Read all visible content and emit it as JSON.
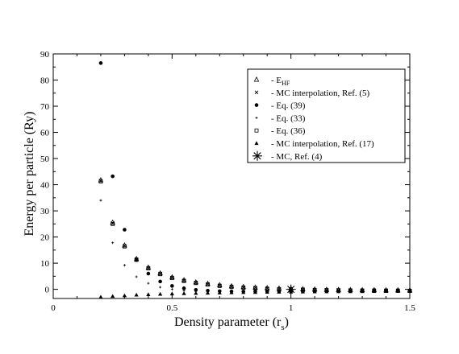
{
  "chart_data": {
    "type": "scatter",
    "xlabel": "Density parameter (r",
    "xlabel_sub": "s",
    "xlabel_close": ")",
    "ylabel": "Energy per particle (Ry)",
    "xlim": [
      0,
      1.5
    ],
    "ylim": [
      -3.5,
      90
    ],
    "xticks": [
      0,
      0.5,
      1,
      1.5
    ],
    "xtick_labels": [
      "0",
      "0.5",
      "1",
      "1.5"
    ],
    "yticks": [
      0,
      10,
      20,
      30,
      40,
      50,
      60,
      70,
      80,
      90
    ],
    "ytick_labels": [
      "0",
      "10",
      "20",
      "30",
      "40",
      "50",
      "60",
      "70",
      "80",
      "90"
    ],
    "grid": false,
    "legend_position": "top-right",
    "legend": [
      {
        "marker": "triangle-open",
        "prefix": "- ",
        "label": "E",
        "sub": "HF"
      },
      {
        "marker": "x",
        "prefix": "- ",
        "label": "MC interpolation, Ref.  (5)"
      },
      {
        "marker": "dot",
        "prefix": "- ",
        "label": "Eq.  (39)"
      },
      {
        "marker": "plus",
        "prefix": "- ",
        "label": "Eq.  (33)"
      },
      {
        "marker": "square-open",
        "prefix": "- ",
        "label": "Eq.  (36)"
      },
      {
        "marker": "triangle-filled",
        "prefix": "- ",
        "label": "MC interpolation, Ref.  (17)"
      },
      {
        "marker": "asterisk",
        "prefix": "- ",
        "label": "MC, Ref.  (4)"
      }
    ],
    "series": [
      {
        "marker": "triangle-open",
        "x": [
          0.2,
          0.25,
          0.3,
          0.35,
          0.4,
          0.45,
          0.5,
          0.55,
          0.6,
          0.65,
          0.7,
          0.75,
          0.8,
          0.85,
          0.9,
          0.95,
          1.0,
          1.05,
          1.1,
          1.15,
          1.2,
          1.25,
          1.3,
          1.35,
          1.4,
          1.45,
          1.5
        ],
        "y": [
          41.7,
          25.5,
          16.8,
          11.6,
          8.3,
          6.1,
          4.6,
          3.5,
          2.7,
          2.1,
          1.6,
          1.2,
          0.9,
          0.7,
          0.5,
          0.3,
          0.2,
          0.05,
          -0.05,
          -0.15,
          -0.2,
          -0.25,
          -0.3,
          -0.3,
          -0.35,
          -0.35,
          -0.4
        ]
      },
      {
        "marker": "x",
        "x": [
          0.2,
          0.25,
          0.3,
          0.35,
          0.4,
          0.45,
          0.5,
          0.55,
          0.6,
          0.65,
          0.7,
          0.75,
          0.8,
          0.85,
          0.9,
          0.95,
          1.0,
          1.05,
          1.1,
          1.15,
          1.2,
          1.25,
          1.3,
          1.35,
          1.4,
          1.45,
          1.5
        ],
        "y": [
          41.5,
          25.3,
          16.6,
          11.5,
          8.2,
          6.0,
          4.5,
          3.4,
          2.6,
          2.0,
          1.5,
          1.1,
          0.8,
          0.6,
          0.4,
          0.2,
          0.1,
          0.0,
          -0.1,
          -0.2,
          -0.25,
          -0.3,
          -0.35,
          -0.35,
          -0.4,
          -0.4,
          -0.45
        ]
      },
      {
        "marker": "dot",
        "x": [
          0.2,
          0.25,
          0.3,
          0.35,
          0.4,
          0.45,
          0.5,
          0.55,
          0.6,
          0.65,
          0.7,
          0.75,
          0.8,
          0.85,
          0.9,
          0.95,
          1.0,
          1.05,
          1.1,
          1.15,
          1.2,
          1.25,
          1.3,
          1.35,
          1.4,
          1.45,
          1.5
        ],
        "y": [
          86.5,
          43.2,
          22.8,
          11.2,
          6.0,
          3.0,
          1.3,
          0.4,
          -0.2,
          -0.5,
          -0.7,
          -0.8,
          -0.85,
          -0.85,
          -0.85,
          -0.85,
          -0.85,
          -0.82,
          -0.8,
          -0.78,
          -0.75,
          -0.72,
          -0.7,
          -0.68,
          -0.65,
          -0.63,
          -0.6
        ]
      },
      {
        "marker": "plus",
        "x": [
          0.2,
          0.25,
          0.3,
          0.35,
          0.4,
          0.45,
          0.5,
          0.55,
          0.6,
          0.65,
          0.7,
          0.75,
          0.8,
          0.85,
          0.9,
          0.95,
          1.0,
          1.05,
          1.1,
          1.15,
          1.2,
          1.25,
          1.3,
          1.35,
          1.4,
          1.45,
          1.5
        ],
        "y": [
          34.0,
          17.8,
          9.2,
          4.8,
          2.3,
          0.8,
          0.0,
          -0.5,
          -0.8,
          -0.95,
          -1.05,
          -1.1,
          -1.12,
          -1.12,
          -1.1,
          -1.08,
          -1.05,
          -1.02,
          -1.0,
          -0.97,
          -0.94,
          -0.9,
          -0.87,
          -0.84,
          -0.8,
          -0.77,
          -0.74
        ]
      },
      {
        "marker": "square-open",
        "x": [
          0.2,
          0.25,
          0.3,
          0.35,
          0.4,
          0.45,
          0.5,
          0.55,
          0.6,
          0.65,
          0.7,
          0.75,
          0.8,
          0.85,
          0.9,
          0.95,
          1.0,
          1.05,
          1.1,
          1.15,
          1.2,
          1.25,
          1.3,
          1.35,
          1.4,
          1.45,
          1.5
        ],
        "y": [
          41.2,
          25.0,
          16.4,
          11.3,
          8.0,
          5.8,
          4.3,
          3.2,
          2.4,
          1.8,
          1.3,
          0.9,
          0.6,
          0.4,
          0.2,
          0.05,
          -0.05,
          -0.15,
          -0.25,
          -0.3,
          -0.35,
          -0.4,
          -0.45,
          -0.45,
          -0.5,
          -0.5,
          -0.55
        ]
      },
      {
        "marker": "triangle-filled",
        "x": [
          0.2,
          0.25,
          0.3,
          0.35,
          0.4,
          0.45,
          0.5,
          0.55,
          0.6,
          0.65,
          0.7,
          0.75,
          0.8,
          0.85,
          0.9,
          0.95,
          1.0,
          1.05,
          1.1,
          1.15,
          1.2,
          1.25,
          1.3,
          1.35,
          1.4,
          1.45,
          1.5
        ],
        "y": [
          -2.9,
          -2.6,
          -2.35,
          -2.1,
          -1.95,
          -1.8,
          -1.65,
          -1.55,
          -1.45,
          -1.35,
          -1.28,
          -1.2,
          -1.14,
          -1.08,
          -1.03,
          -0.98,
          -0.94,
          -0.9,
          -0.86,
          -0.83,
          -0.8,
          -0.77,
          -0.74,
          -0.72,
          -0.7,
          -0.67,
          -0.65
        ]
      },
      {
        "marker": "asterisk",
        "x": [
          1.0
        ],
        "y": [
          0.0
        ]
      }
    ]
  }
}
